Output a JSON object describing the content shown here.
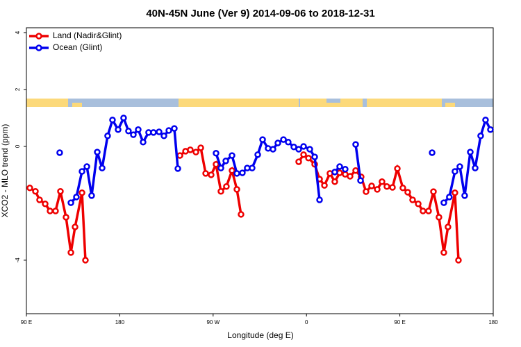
{
  "chart_data": {
    "type": "line",
    "title": "40N-45N June (Ver 9)   2014-09-06 to 2018-12-31",
    "x_label": "Longitude (deg E)",
    "y_label": "XCO2 - MLO trend (ppm)",
    "xlim": [
      90,
      540
    ],
    "xticks": [
      {
        "value": 90,
        "label": "90 E"
      },
      180,
      {
        "value": 270,
        "label": "90 W"
      },
      {
        "value": 360,
        "label": "0"
      },
      {
        "value": 450,
        "label": "90 E"
      },
      {
        "value": 540,
        "label": "180"
      }
    ],
    "ylim": [
      -5.88,
      4.17
    ],
    "yticks": [
      -4,
      0,
      2,
      4
    ],
    "legend": "top-left",
    "series": [
      {
        "name": "Land (Nadir&Glint)",
        "color": "#ee0000",
        "x": [
          93.3,
          98.7,
          102.7,
          108.1,
          112.8,
          118.1,
          122.8,
          128.2,
          132.9,
          136.9,
          143.6,
          146.9,
          null,
          238.0,
          243.4,
          248.0,
          253.4,
          258.1,
          262.8,
          268.1,
          272.8,
          277.5,
          282.8,
          288.2,
          292.9,
          296.9,
          null,
          352.5,
          357.2,
          361.9,
          367.9,
          372.6,
          377.3,
          382.6,
          387.3,
          392.0,
          397.3,
          402.0,
          407.4,
          412.7,
          417.4,
          422.8,
          428.2,
          432.8,
          437.5,
          442.9,
          447.6,
          452.9,
          457.6,
          462.3,
          467.7,
          472.3,
          477.7,
          482.4,
          487.7,
          492.4,
          496.4,
          503.1,
          506.5
        ],
        "values": [
          -1.46,
          -1.58,
          -1.88,
          -2.02,
          -2.27,
          -2.27,
          -1.58,
          -2.49,
          -3.73,
          -2.83,
          -1.63,
          -4.0,
          null,
          -0.32,
          -0.17,
          -0.12,
          -0.2,
          -0.05,
          -0.95,
          -1.0,
          -0.63,
          -1.58,
          -1.41,
          -0.85,
          -1.51,
          -2.39,
          null,
          -0.54,
          -0.29,
          -0.41,
          -0.63,
          -1.15,
          -1.37,
          -0.95,
          -1.24,
          -0.93,
          -0.98,
          -1.05,
          -0.85,
          -1.07,
          -1.59,
          -1.39,
          -1.51,
          -1.24,
          -1.41,
          -1.44,
          -0.78,
          -1.46,
          -1.61,
          -1.88,
          -2.02,
          -2.27,
          -2.27,
          -1.59,
          -2.49,
          -3.73,
          -2.83,
          -1.63,
          -4.0
        ]
      },
      {
        "name": "Ocean (Glint)",
        "color": "#0000ee",
        "x": [
          122.1,
          null,
          132.9,
          138.2,
          143.6,
          148.3,
          152.9,
          158.3,
          163.0,
          168.3,
          173.0,
          178.4,
          183.7,
          188.4,
          193.1,
          197.8,
          202.5,
          207.8,
          212.5,
          217.9,
          222.6,
          227.3,
          232.6,
          236.0,
          null,
          272.8,
          277.5,
          282.2,
          288.2,
          292.9,
          298.2,
          302.9,
          307.6,
          313.0,
          317.7,
          323.0,
          327.7,
          332.4,
          337.8,
          342.4,
          347.8,
          352.5,
          357.2,
          363.2,
          367.9,
          372.6,
          null,
          387.3,
          392.0,
          397.3,
          null,
          407.4,
          412.1,
          null,
          481.1,
          null,
          492.4,
          497.7,
          503.1,
          507.8,
          512.5,
          517.9,
          522.6,
          527.9,
          532.6,
          537.3
        ],
        "values": [
          -0.22,
          null,
          -1.98,
          -1.78,
          -0.88,
          -0.71,
          -1.73,
          -0.2,
          -0.76,
          0.37,
          0.93,
          0.59,
          1.0,
          0.54,
          0.41,
          0.59,
          0.15,
          0.49,
          0.49,
          0.51,
          0.37,
          0.56,
          0.63,
          -0.78,
          null,
          -0.24,
          -0.76,
          -0.51,
          -0.32,
          -0.95,
          -0.93,
          -0.76,
          -0.76,
          -0.29,
          0.24,
          -0.07,
          -0.1,
          0.12,
          0.24,
          0.15,
          -0.02,
          -0.1,
          0.0,
          -0.1,
          -0.37,
          -1.88,
          null,
          -0.9,
          -0.71,
          -0.8,
          null,
          0.07,
          -1.2,
          null,
          -0.22,
          null,
          -1.98,
          -1.78,
          -0.88,
          -0.71,
          -1.73,
          -0.2,
          -0.76,
          0.37,
          0.93,
          0.59
        ]
      }
    ]
  }
}
